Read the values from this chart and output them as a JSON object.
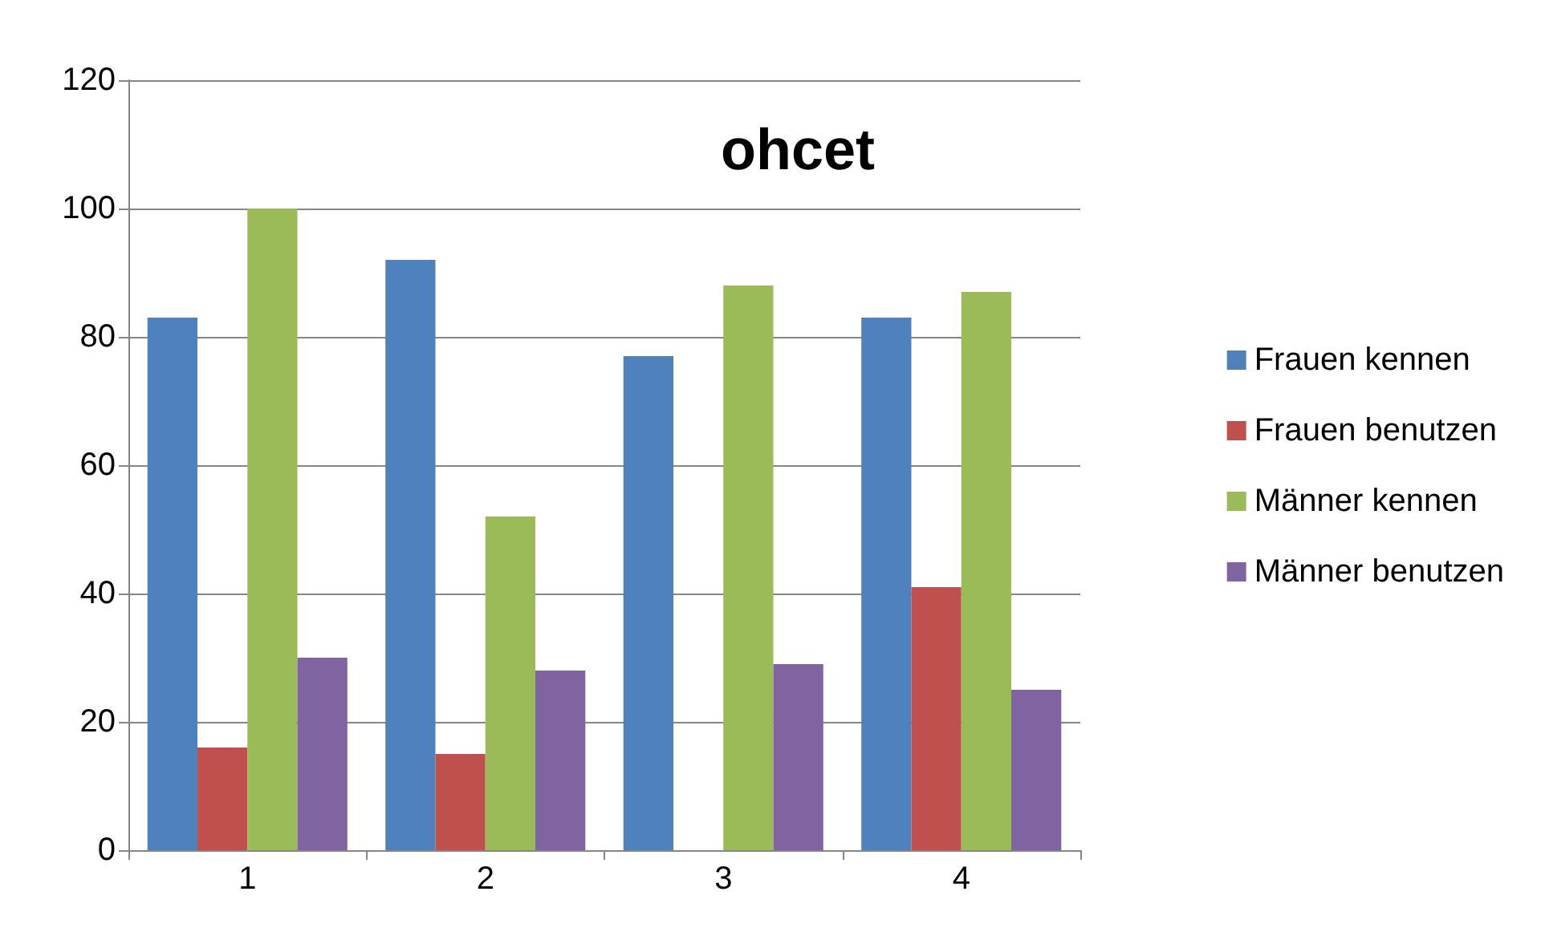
{
  "chart_data": {
    "type": "bar",
    "title": "ohcet",
    "categories": [
      "1",
      "2",
      "3",
      "4"
    ],
    "series": [
      {
        "name": "Frauen kennen",
        "color": "#4f81bd",
        "values": [
          83,
          92,
          77,
          83
        ]
      },
      {
        "name": "Frauen benutzen",
        "color": "#c0504d",
        "values": [
          16,
          15,
          0,
          41
        ]
      },
      {
        "name": "Männer kennen",
        "color": "#9bbb59",
        "values": [
          100,
          52,
          88,
          87
        ]
      },
      {
        "name": "Männer benutzen",
        "color": "#8064a2",
        "values": [
          30,
          28,
          29,
          25
        ]
      }
    ],
    "ylim": [
      0,
      120
    ],
    "yticks": [
      0,
      20,
      40,
      60,
      80,
      100,
      120
    ],
    "grid": "y",
    "legend": "right"
  }
}
